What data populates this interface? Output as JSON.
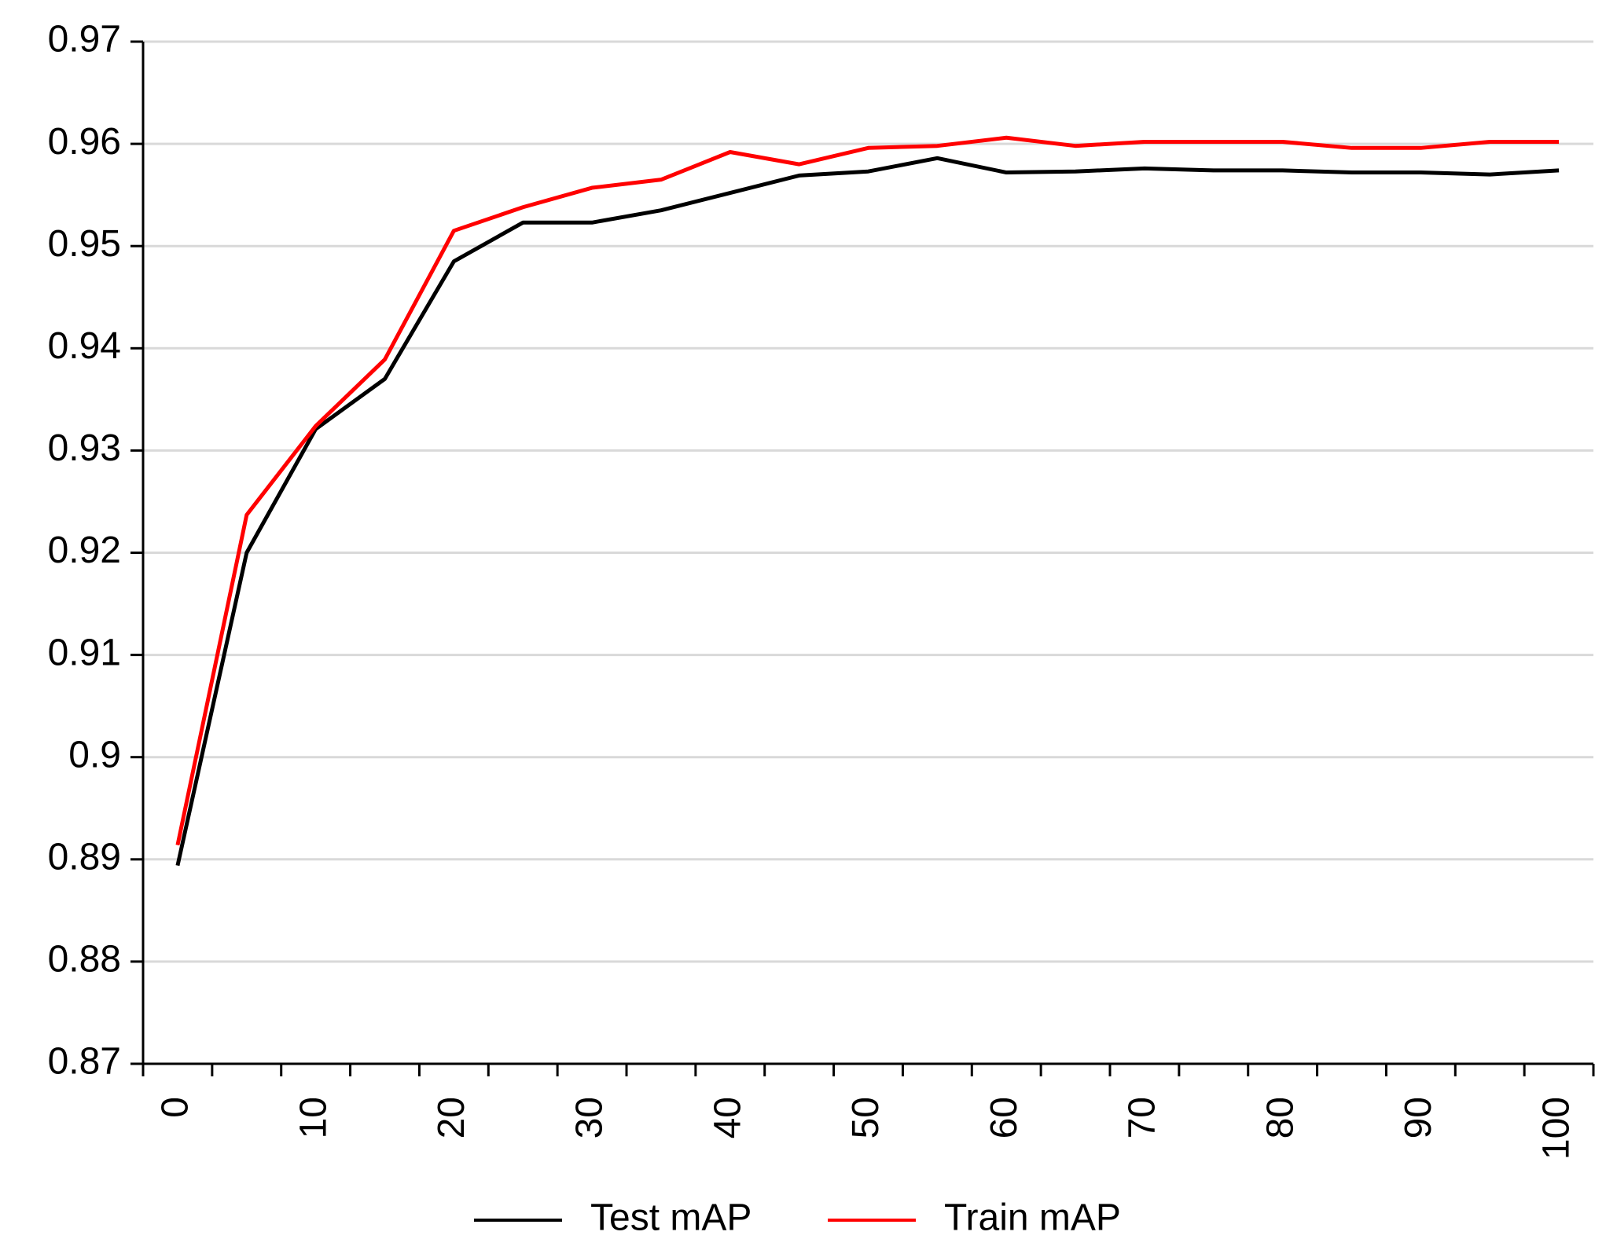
{
  "chart_data": {
    "type": "line",
    "categories": [
      "0",
      null,
      "10",
      null,
      "20",
      null,
      "30",
      null,
      "40",
      null,
      "50",
      null,
      "60",
      null,
      "70",
      null,
      "80",
      null,
      "90",
      null,
      "100"
    ],
    "series": [
      {
        "name": "Test mAP",
        "color": "#000000",
        "values": [
          0.8894,
          0.92,
          0.9321,
          0.937,
          0.9485,
          0.9523,
          0.9523,
          0.9535,
          0.9552,
          0.9569,
          0.9573,
          0.9586,
          0.9572,
          0.9573,
          0.9576,
          0.9574,
          0.9574,
          0.9572,
          0.9572,
          0.957,
          0.9574
        ]
      },
      {
        "name": "Train mAP",
        "color": "#ff0000",
        "values": [
          0.8914,
          0.9237,
          0.9324,
          0.9389,
          0.9515,
          0.9538,
          0.9557,
          0.9565,
          0.9592,
          0.958,
          0.9596,
          0.9598,
          0.9606,
          0.9598,
          0.9602,
          0.9602,
          0.9602,
          0.9596,
          0.9596,
          0.9602,
          0.9602
        ]
      }
    ],
    "ylim": [
      0.87,
      0.97
    ],
    "yticks": [
      0.87,
      0.88,
      0.89,
      0.9,
      0.91,
      0.92,
      0.93,
      0.94,
      0.95,
      0.96,
      0.97
    ],
    "grid": true,
    "legend": "bottom"
  }
}
